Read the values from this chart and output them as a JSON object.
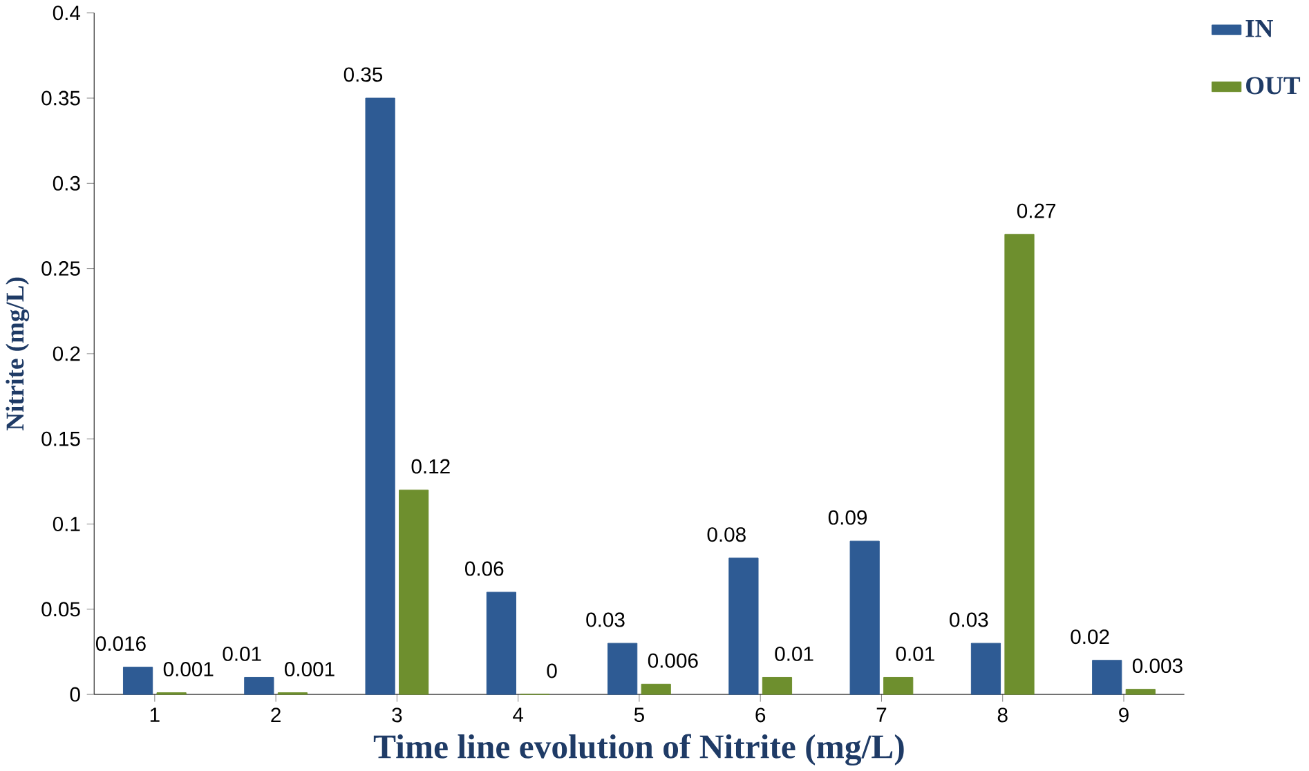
{
  "chart_data": {
    "type": "bar",
    "xlabel": "Time line evolution of Nitrite (mg/L)",
    "ylabel": "Nitrite (mg/L)",
    "categories": [
      "1",
      "2",
      "3",
      "4",
      "5",
      "6",
      "7",
      "8",
      "9"
    ],
    "series": [
      {
        "name": "IN",
        "color": "#2e5b94",
        "values": [
          0.016,
          0.01,
          0.35,
          0.06,
          0.03,
          0.08,
          0.09,
          0.03,
          0.02
        ]
      },
      {
        "name": "OUT",
        "color": "#6e8f2e",
        "values": [
          0.001,
          0.001,
          0.12,
          0,
          0.006,
          0.01,
          0.01,
          0.27,
          0.003
        ]
      }
    ],
    "ylim": [
      0,
      0.4
    ],
    "yticks": [
      0,
      0.05,
      0.1,
      0.15,
      0.2,
      0.25,
      0.3,
      0.35,
      0.4
    ],
    "data_labels": true,
    "grid": false,
    "legend": "top right"
  }
}
